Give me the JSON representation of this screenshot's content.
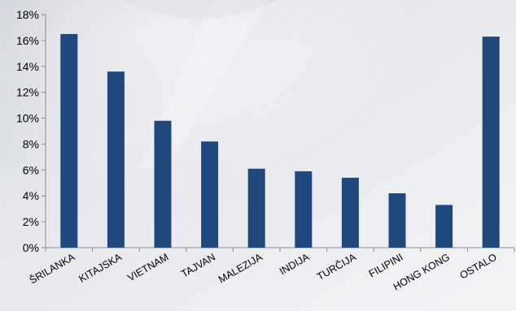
{
  "chart_data": {
    "type": "bar",
    "title": "",
    "xlabel": "",
    "ylabel": "",
    "categories": [
      "ŠRILANKA",
      "KITAJSKA",
      "VIETNAM",
      "TAJVAN",
      "MALEZIJA",
      "INDIJA",
      "TURČIJA",
      "FILIPINI",
      "HONG KONG",
      "OSTALO"
    ],
    "values": [
      16.5,
      13.6,
      9.8,
      8.2,
      6.1,
      5.9,
      5.4,
      4.2,
      3.3,
      16.3
    ],
    "ylim": [
      0,
      18
    ],
    "yticks": [
      0,
      2,
      4,
      6,
      8,
      10,
      12,
      14,
      16,
      18
    ],
    "ytick_labels": [
      "0%",
      "2%",
      "4%",
      "6%",
      "8%",
      "10%",
      "12%",
      "14%",
      "16%",
      "18%"
    ],
    "grid": false,
    "legend": "none",
    "bar_color": "#1f497d"
  }
}
